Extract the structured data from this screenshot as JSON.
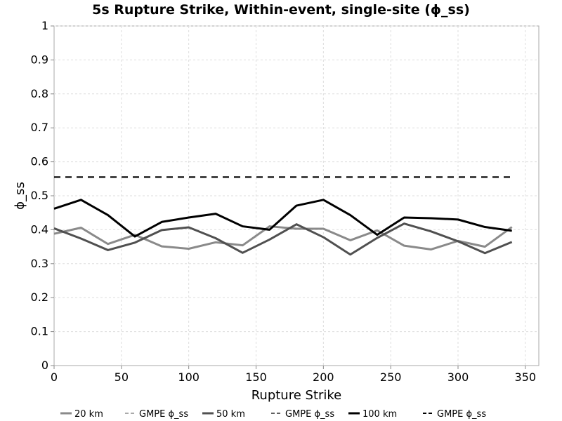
{
  "chart_data": {
    "type": "line",
    "title": "5s Rupture Strike, Within-event, single-site (ϕ_ss)",
    "xlabel": "Rupture Strike",
    "ylabel": "ϕ_ss",
    "xlim": [
      0,
      360
    ],
    "ylim": [
      0,
      1
    ],
    "grid": true,
    "legend_position": "bottom",
    "x_ticks": [
      "0",
      "50",
      "100",
      "150",
      "200",
      "250",
      "300",
      "350"
    ],
    "y_ticks": [
      "0",
      "0.1",
      "0.2",
      "0.3",
      "0.4",
      "0.5",
      "0.6",
      "0.7",
      "0.8",
      "0.9",
      "1"
    ],
    "x": [
      0,
      20,
      40,
      60,
      80,
      100,
      120,
      140,
      160,
      180,
      200,
      220,
      240,
      260,
      280,
      300,
      320,
      340
    ],
    "series": [
      {
        "name": "20 km",
        "color": "#8a8a8a",
        "dashed": false,
        "values": [
          0.388,
          0.406,
          0.358,
          0.385,
          0.351,
          0.344,
          0.363,
          0.354,
          0.41,
          0.403,
          0.403,
          0.369,
          0.398,
          0.353,
          0.342,
          0.367,
          0.35,
          0.408
        ]
      },
      {
        "name": "GMPE ϕ_ss",
        "color": "#aaaaaa",
        "dashed": true,
        "values": [
          0.555,
          0.555,
          0.555,
          0.555,
          0.555,
          0.555,
          0.555,
          0.555,
          0.555,
          0.555,
          0.555,
          0.555,
          0.555,
          0.555,
          0.555,
          0.555,
          0.555,
          0.555
        ]
      },
      {
        "name": "50 km",
        "color": "#505050",
        "dashed": false,
        "values": [
          0.404,
          0.374,
          0.34,
          0.362,
          0.399,
          0.407,
          0.375,
          0.332,
          0.371,
          0.416,
          0.378,
          0.327,
          0.376,
          0.418,
          0.395,
          0.366,
          0.331,
          0.364
        ]
      },
      {
        "name": "GMPE ϕ_ss",
        "color": "#606060",
        "dashed": true,
        "values": [
          0.555,
          0.555,
          0.555,
          0.555,
          0.555,
          0.555,
          0.555,
          0.555,
          0.555,
          0.555,
          0.555,
          0.555,
          0.555,
          0.555,
          0.555,
          0.555,
          0.555,
          0.555
        ]
      },
      {
        "name": "100 km",
        "color": "#000000",
        "dashed": false,
        "values": [
          0.462,
          0.488,
          0.443,
          0.38,
          0.423,
          0.436,
          0.447,
          0.41,
          0.4,
          0.471,
          0.488,
          0.443,
          0.385,
          0.436,
          0.434,
          0.43,
          0.408,
          0.397
        ]
      },
      {
        "name": "GMPE ϕ_ss",
        "color": "#000000",
        "dashed": true,
        "values": [
          0.555,
          0.555,
          0.555,
          0.555,
          0.555,
          0.555,
          0.555,
          0.555,
          0.555,
          0.555,
          0.555,
          0.555,
          0.555,
          0.555,
          0.555,
          0.555,
          0.555,
          0.555
        ]
      }
    ]
  }
}
